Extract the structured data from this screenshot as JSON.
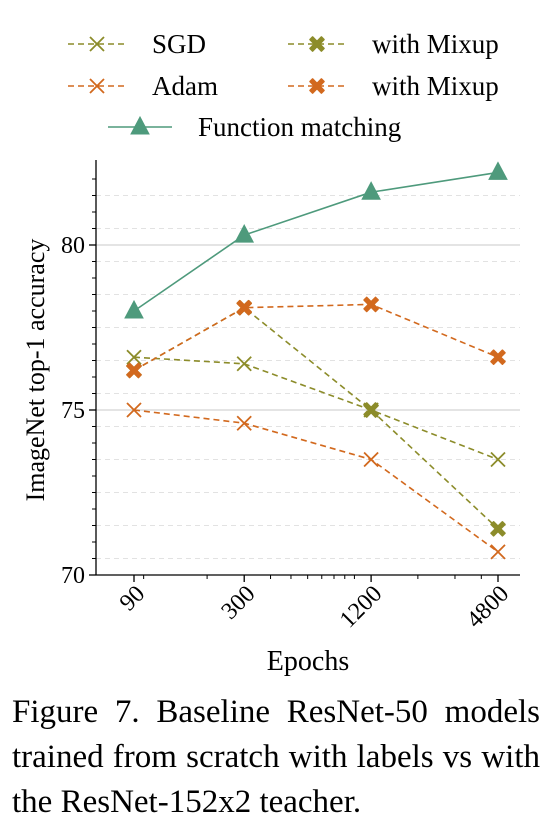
{
  "chart_data": {
    "type": "line",
    "xlabel": "Epochs",
    "ylabel": "ImageNet top-1 accuracy",
    "x_categories": [
      "90",
      "300",
      "1200",
      "4800"
    ],
    "x_scale": "log",
    "ylim": [
      70,
      82.3
    ],
    "yticks": [
      70,
      75,
      80
    ],
    "grid": "horizontal",
    "legend_position": "top",
    "series": [
      {
        "name": "SGD",
        "marker": "x",
        "dash": "dashed",
        "color": "#8c8c2a",
        "values": [
          76.6,
          76.4,
          75.0,
          73.5
        ]
      },
      {
        "name": "Adam",
        "marker": "x",
        "dash": "dashed",
        "color": "#d2691e",
        "values": [
          75.0,
          74.6,
          73.5,
          70.7
        ]
      },
      {
        "name": "with Mixup",
        "marker": "X",
        "dash": "dashed",
        "color": "#8c8c2a",
        "values": [
          76.2,
          78.1,
          75.0,
          71.4
        ]
      },
      {
        "name": "with Mixup",
        "marker": "X",
        "dash": "dashed",
        "color": "#d2691e",
        "values": [
          76.2,
          78.1,
          78.2,
          76.6
        ]
      },
      {
        "name": "Function matching",
        "marker": "triangle",
        "dash": "solid",
        "color": "#4e9a7c",
        "values": [
          78.0,
          80.3,
          81.6,
          82.2
        ]
      }
    ]
  },
  "caption": "Figure 7. Baseline ResNet-50 models trained from scratch with labels vs with the ResNet-152x2 teacher."
}
